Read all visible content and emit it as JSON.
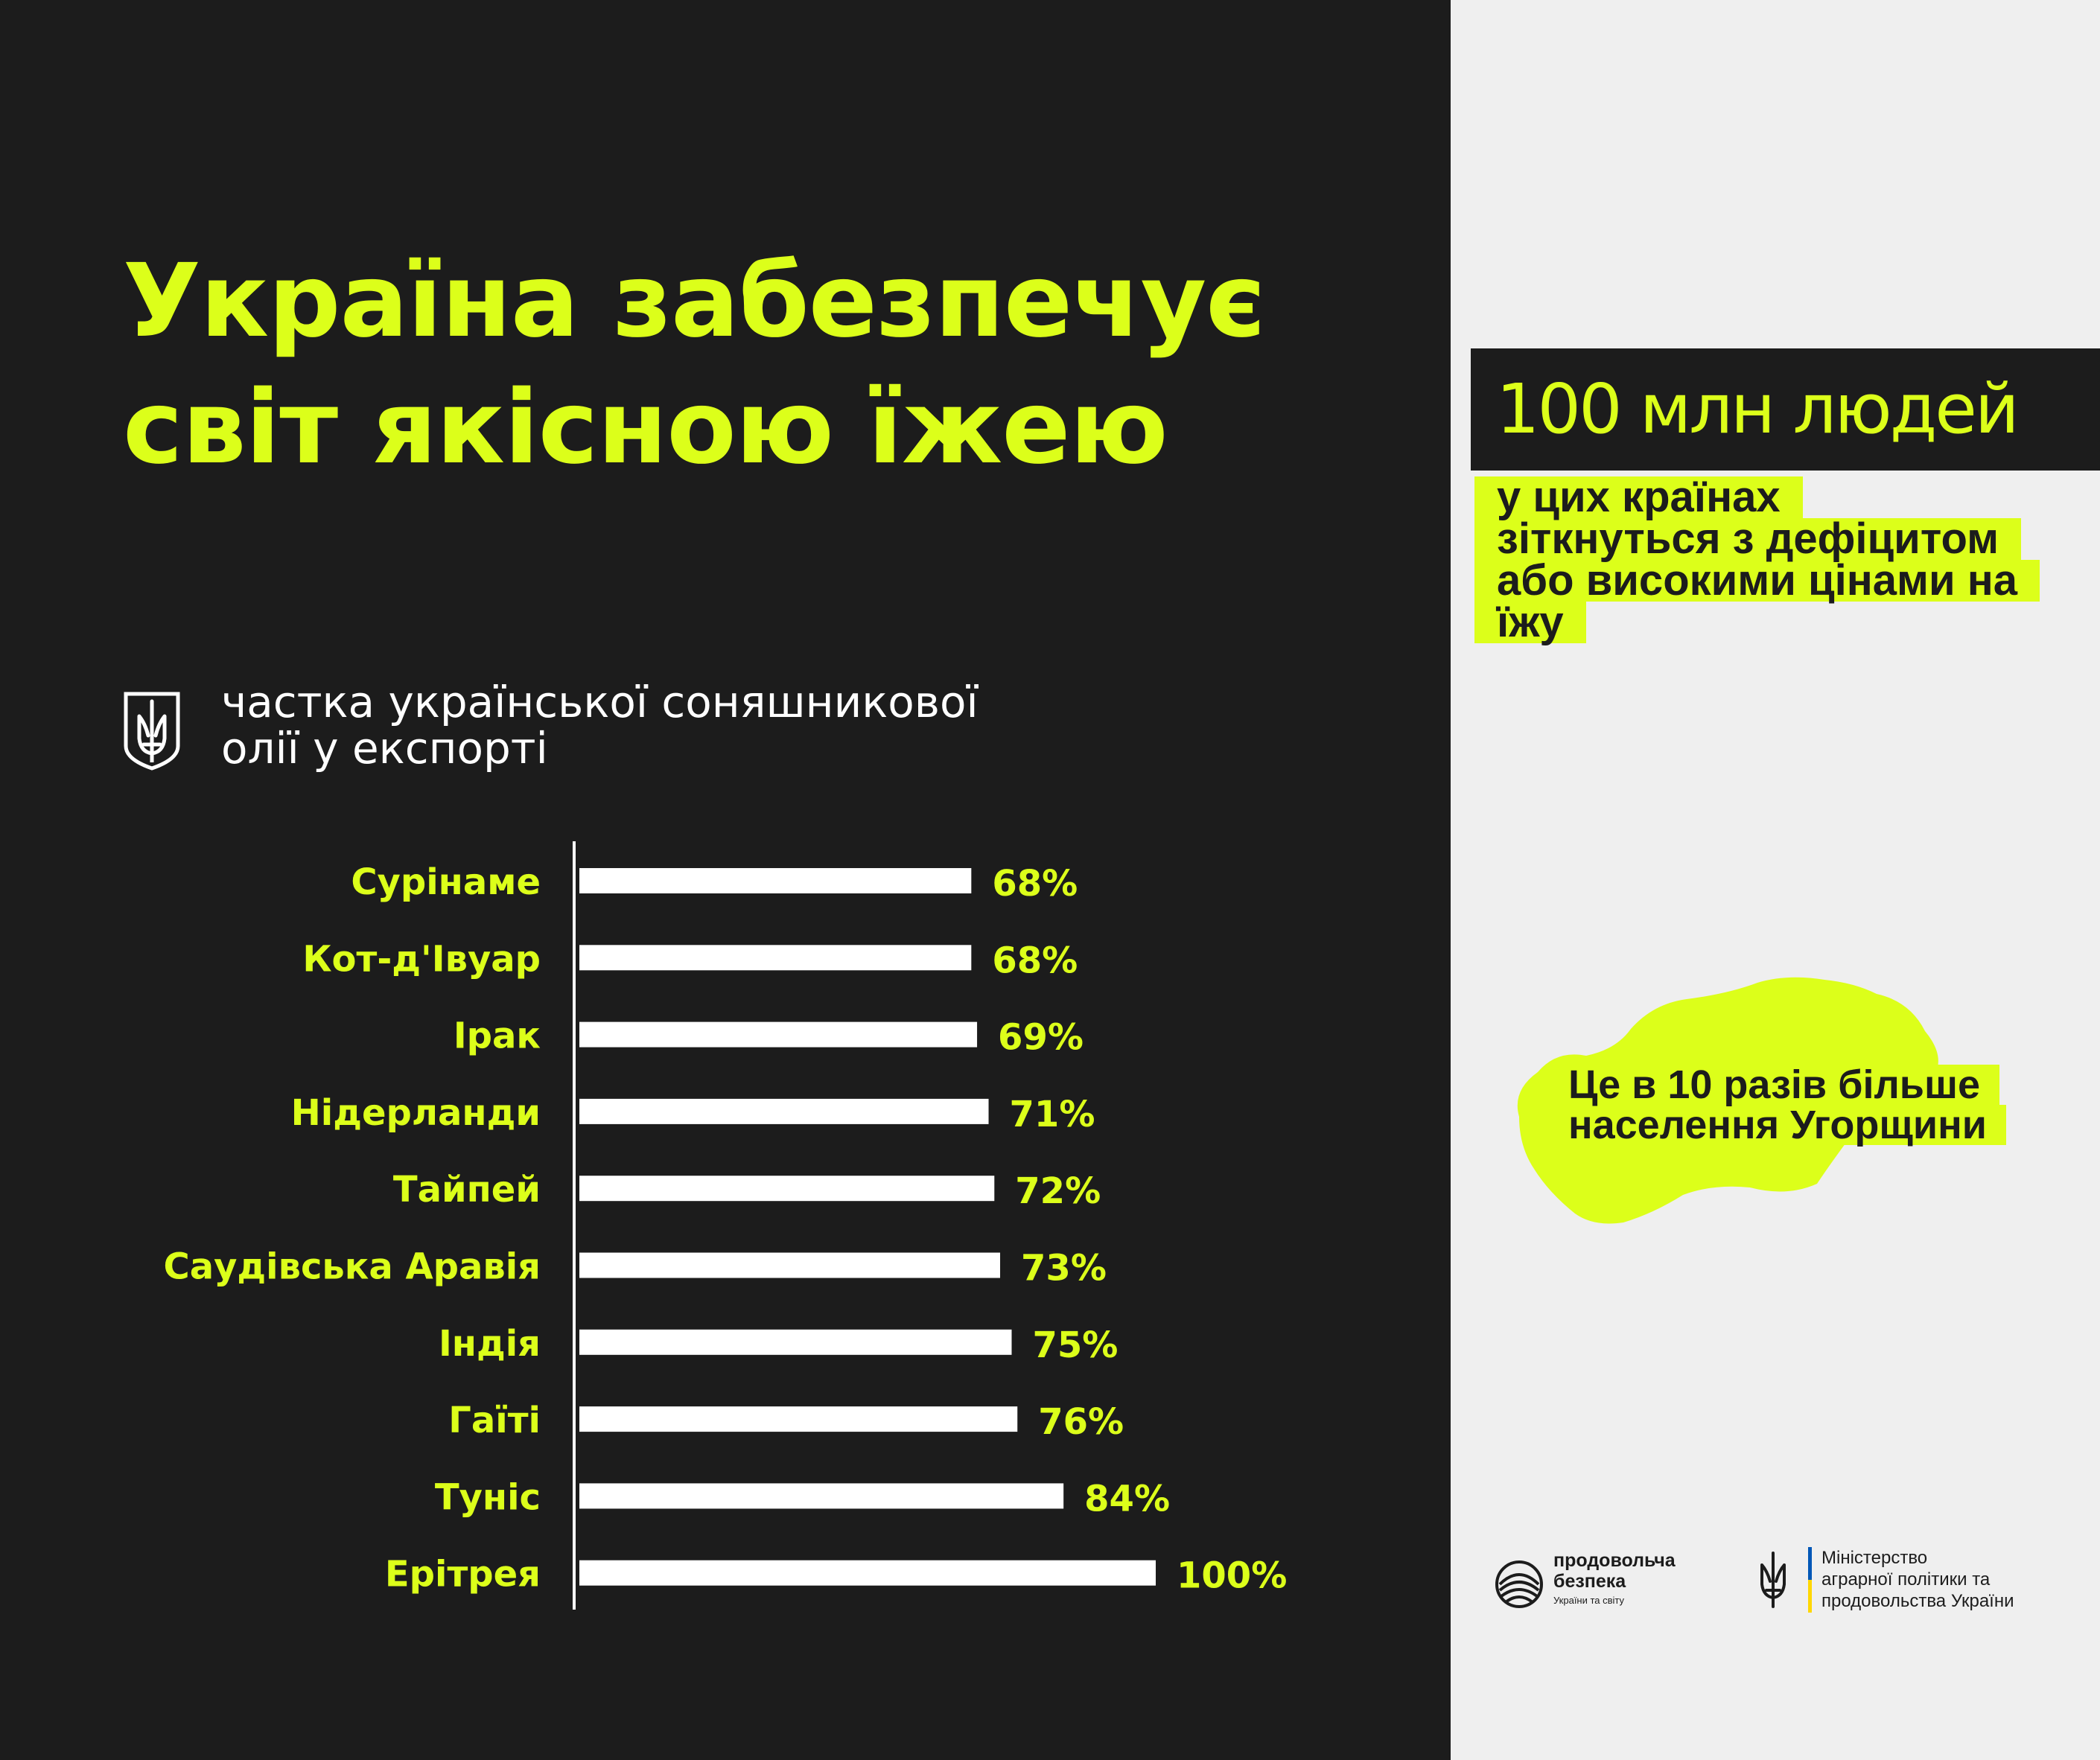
{
  "header": {
    "title_lines": [
      "Україна забезпечує",
      "світ якісною їжею"
    ]
  },
  "subtitle_lines": [
    "частка української соняшникової",
    "олії у експорті"
  ],
  "stat": {
    "headline": "100 млн людей",
    "detail_lines": [
      "у цих країнах",
      "зіткнуться з дефіцитом",
      "або високими цінами на",
      "їжу"
    ]
  },
  "note_lines": [
    "Це в 10 разів більше",
    "населення Угорщини"
  ],
  "logos": {
    "food_security_title_lines": [
      "продовольча",
      "безпека"
    ],
    "food_security_subtitle": "України та світу",
    "ministry_lines": [
      "Міністерство",
      "аграрної політики та",
      "продовольства України"
    ]
  },
  "colors": {
    "accent": "#dcff1a",
    "background_dark": "#1c1c1c",
    "background_light": "#efefef",
    "bar": "#ffffff",
    "ukraine_blue": "#0057b7",
    "ukraine_yellow": "#ffd700"
  },
  "chart_data": {
    "type": "bar",
    "orientation": "horizontal",
    "categories": [
      "Сурінаме",
      "Кот-д'Івуар",
      "Ірак",
      "Нідерланди",
      "Тайпей",
      "Саудівська Аравія",
      "Індія",
      "Гаїті",
      "Туніс",
      "Ерітрея"
    ],
    "values": [
      68,
      68,
      69,
      71,
      72,
      73,
      75,
      76,
      84,
      100
    ],
    "value_labels": [
      "68%",
      "68%",
      "69%",
      "71%",
      "72%",
      "73%",
      "75%",
      "76%",
      "84%",
      "100%"
    ],
    "xlim": [
      0,
      100
    ],
    "grid": false
  }
}
